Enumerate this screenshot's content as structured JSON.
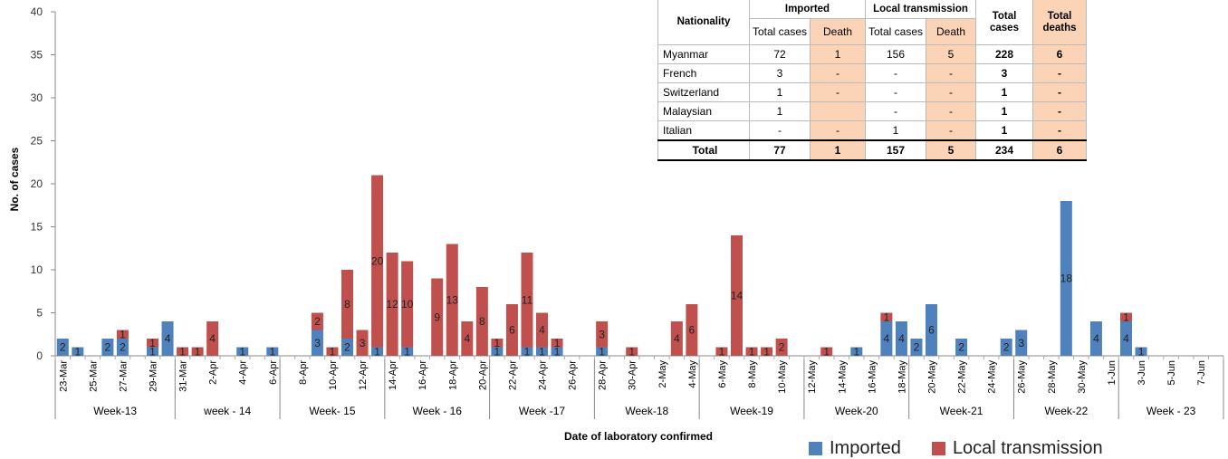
{
  "chart_data": {
    "type": "bar",
    "stacked": true,
    "xlabel": "Date of laboratory confirmed",
    "ylabel": "No. of cases",
    "ylim": [
      0,
      40
    ],
    "yticks": [
      0,
      5,
      10,
      15,
      20,
      25,
      30,
      35,
      40
    ],
    "grid": false,
    "legend_position": "bottom-right",
    "series": [
      {
        "name": "Imported",
        "color": "#4f81bd"
      },
      {
        "name": "Local transmission",
        "color": "#c0504d"
      }
    ],
    "date_labels": [
      "23-Mar",
      "25-Mar",
      "27-Mar",
      "29-Mar",
      "31-Mar",
      "2-Apr",
      "4-Apr",
      "6-Apr",
      "8-Apr",
      "10-Apr",
      "12-Apr",
      "14-Apr",
      "16-Apr",
      "18-Apr",
      "20-Apr",
      "22-Apr",
      "24-Apr",
      "26-Apr",
      "28-Apr",
      "30-Apr",
      "2-May",
      "4-May",
      "6-May",
      "8-May",
      "10-May",
      "12-May",
      "14-May",
      "16-May",
      "18-May",
      "20-May",
      "22-May",
      "24-May",
      "26-May",
      "28-May",
      "30-May",
      "1-Jun",
      "3-Jun",
      "5-Jun",
      "7-Jun"
    ],
    "weeks": [
      {
        "label": "Week-13",
        "start": 1,
        "end": 8
      },
      {
        "label": "week - 14",
        "start": 9,
        "end": 15
      },
      {
        "label": "Week- 15",
        "start": 16,
        "end": 22
      },
      {
        "label": "Week - 16",
        "start": 23,
        "end": 29
      },
      {
        "label": "Week -17",
        "start": 30,
        "end": 36
      },
      {
        "label": "Week-18",
        "start": 37,
        "end": 43
      },
      {
        "label": "Week-19",
        "start": 44,
        "end": 50
      },
      {
        "label": "Week-20",
        "start": 51,
        "end": 57
      },
      {
        "label": "Week-21",
        "start": 58,
        "end": 64
      },
      {
        "label": "Week-22",
        "start": 65,
        "end": 71
      },
      {
        "label": "Week - 23",
        "start": 72,
        "end": 78
      }
    ],
    "bars": [
      {
        "date": "23-Mar",
        "imported": 2,
        "local": 0
      },
      {
        "date": "24-Mar",
        "imported": 1,
        "local": 0
      },
      {
        "date": "26-Mar",
        "imported": 2,
        "local": 0
      },
      {
        "date": "27-Mar",
        "imported": 2,
        "local": 1
      },
      {
        "date": "29-Mar",
        "imported": 1,
        "local": 1
      },
      {
        "date": "30-Mar",
        "imported": 4,
        "local": 0
      },
      {
        "date": "31-Mar",
        "imported": 0,
        "local": 1
      },
      {
        "date": "1-Apr",
        "imported": 0,
        "local": 1
      },
      {
        "date": "2-Apr",
        "imported": 0,
        "local": 4
      },
      {
        "date": "4-Apr",
        "imported": 1,
        "local": 0
      },
      {
        "date": "6-Apr",
        "imported": 1,
        "local": 0
      },
      {
        "date": "9-Apr",
        "imported": 3,
        "local": 2
      },
      {
        "date": "10-Apr",
        "imported": 0,
        "local": 1
      },
      {
        "date": "11-Apr",
        "imported": 2,
        "local": 8
      },
      {
        "date": "12-Apr",
        "imported": 0,
        "local": 3
      },
      {
        "date": "13-Apr",
        "imported": 1,
        "local": 20
      },
      {
        "date": "14-Apr",
        "imported": 0,
        "local": 12
      },
      {
        "date": "15-Apr",
        "imported": 1,
        "local": 10
      },
      {
        "date": "17-Apr",
        "imported": 0,
        "local": 9
      },
      {
        "date": "18-Apr",
        "imported": 0,
        "local": 13
      },
      {
        "date": "19-Apr",
        "imported": 0,
        "local": 4
      },
      {
        "date": "20-Apr",
        "imported": 0,
        "local": 8
      },
      {
        "date": "21-Apr",
        "imported": 1,
        "local": 1
      },
      {
        "date": "22-Apr",
        "imported": 0,
        "local": 6
      },
      {
        "date": "23-Apr",
        "imported": 1,
        "local": 11
      },
      {
        "date": "24-Apr",
        "imported": 1,
        "local": 4
      },
      {
        "date": "25-Apr",
        "imported": 1,
        "local": 1
      },
      {
        "date": "28-Apr",
        "imported": 1,
        "local": 3
      },
      {
        "date": "30-Apr",
        "imported": 0,
        "local": 1
      },
      {
        "date": "3-May",
        "imported": 0,
        "local": 4
      },
      {
        "date": "4-May",
        "imported": 0,
        "local": 6
      },
      {
        "date": "6-May",
        "imported": 0,
        "local": 1
      },
      {
        "date": "7-May",
        "imported": 0,
        "local": 14
      },
      {
        "date": "8-May",
        "imported": 0,
        "local": 1
      },
      {
        "date": "9-May",
        "imported": 0,
        "local": 1
      },
      {
        "date": "10-May",
        "imported": 0,
        "local": 2
      },
      {
        "date": "13-May",
        "imported": 0,
        "local": 1
      },
      {
        "date": "15-May",
        "imported": 1,
        "local": 0
      },
      {
        "date": "17-May",
        "imported": 4,
        "local": 1
      },
      {
        "date": "18-May",
        "imported": 4,
        "local": 0
      },
      {
        "date": "19-May",
        "imported": 2,
        "local": 0
      },
      {
        "date": "20-May",
        "imported": 6,
        "local": 0
      },
      {
        "date": "22-May",
        "imported": 2,
        "local": 0
      },
      {
        "date": "25-May",
        "imported": 2,
        "local": 0
      },
      {
        "date": "26-May",
        "imported": 3,
        "local": 0
      },
      {
        "date": "29-May",
        "imported": 18,
        "local": 0
      },
      {
        "date": "31-May",
        "imported": 4,
        "local": 0
      },
      {
        "date": "2-Jun",
        "imported": 4,
        "local": 1
      },
      {
        "date": "3-Jun",
        "imported": 1,
        "local": 0
      }
    ]
  },
  "table": {
    "headers": {
      "nationality": "Nationality",
      "imported": "Imported",
      "local": "Local transmission",
      "total_cases": "Total cases",
      "total_deaths": "Total deaths",
      "sub_total": "Total cases",
      "sub_death": "Death"
    },
    "rows": [
      {
        "nationality": "Myanmar",
        "imp_cases": "72",
        "imp_death": "1",
        "loc_cases": "156",
        "loc_death": "5",
        "total_cases": "228",
        "total_deaths": "6"
      },
      {
        "nationality": "French",
        "imp_cases": "3",
        "imp_death": "-",
        "loc_cases": "-",
        "loc_death": "-",
        "total_cases": "3",
        "total_deaths": "-"
      },
      {
        "nationality": "Switzerland",
        "imp_cases": "1",
        "imp_death": "-",
        "loc_cases": "-",
        "loc_death": "-",
        "total_cases": "1",
        "total_deaths": "-"
      },
      {
        "nationality": "Malaysian",
        "imp_cases": "1",
        "imp_death": "",
        "loc_cases": "-",
        "loc_death": "-",
        "total_cases": "1",
        "total_deaths": "-"
      },
      {
        "nationality": "Italian",
        "imp_cases": "-",
        "imp_death": "-",
        "loc_cases": "1",
        "loc_death": "-",
        "total_cases": "1",
        "total_deaths": "-"
      }
    ],
    "total": {
      "nationality": "Total",
      "imp_cases": "77",
      "imp_death": "1",
      "loc_cases": "157",
      "loc_death": "5",
      "total_cases": "234",
      "total_deaths": "6"
    }
  },
  "legend": {
    "imported": "Imported",
    "local": "Local transmission"
  }
}
